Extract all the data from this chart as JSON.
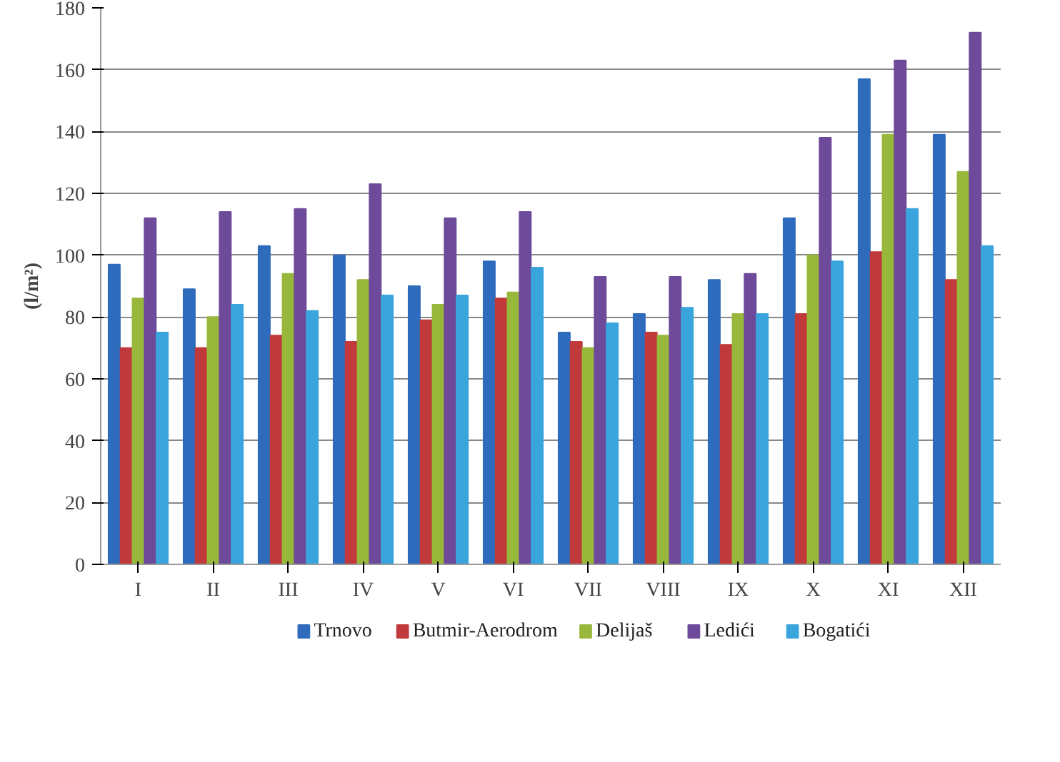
{
  "chart_data": {
    "type": "bar",
    "ylabel": "(l/m²)",
    "categories": [
      "I",
      "II",
      "III",
      "IV",
      "V",
      "VI",
      "VII",
      "VIII",
      "IX",
      "X",
      "XI",
      "XII"
    ],
    "series": [
      {
        "name": "Trnovo",
        "color": "#2e6bbd",
        "values": [
          97,
          89,
          103,
          100,
          90,
          98,
          75,
          81,
          92,
          112,
          157,
          139
        ]
      },
      {
        "name": "Butmir-Aerodrom",
        "color": "#c0393b",
        "values": [
          70,
          70,
          74,
          72,
          79,
          86,
          72,
          75,
          71,
          81,
          101,
          92
        ]
      },
      {
        "name": "Delijaš",
        "color": "#98b83c",
        "values": [
          86,
          80,
          94,
          92,
          84,
          88,
          70,
          74,
          81,
          100,
          139,
          127
        ]
      },
      {
        "name": "Ledići",
        "color": "#6e4a9a",
        "values": [
          112,
          114,
          115,
          123,
          112,
          114,
          93,
          93,
          94,
          138,
          163,
          172
        ]
      },
      {
        "name": "Bogatići",
        "color": "#3aa5dc",
        "values": [
          75,
          84,
          82,
          87,
          87,
          96,
          78,
          83,
          81,
          98,
          115,
          103
        ]
      }
    ],
    "ylim": [
      0,
      180
    ],
    "yticks": [
      0,
      20,
      40,
      60,
      80,
      100,
      120,
      140,
      160,
      180
    ],
    "grid": "y",
    "legend": "bottom"
  }
}
